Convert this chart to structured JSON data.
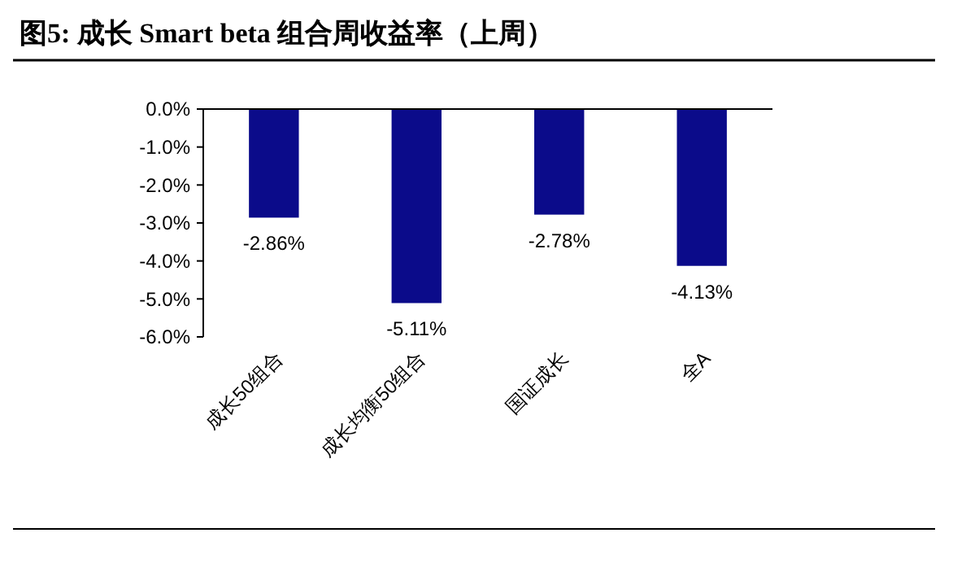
{
  "chart_data": {
    "type": "bar",
    "title": "图5:  成长 Smart beta 组合周收益率（上周）",
    "categories": [
      "成长50组合",
      "成长均衡50组合",
      "国证成长",
      "全A"
    ],
    "values": [
      -2.86,
      -5.11,
      -2.78,
      -4.13
    ],
    "value_labels": [
      "-2.86%",
      "-5.11%",
      "-2.78%",
      "-4.13%"
    ],
    "color": "#0b0b8a",
    "ylim": [
      -6,
      0
    ],
    "yticks": [
      {
        "value": 0,
        "label": "0.0%"
      },
      {
        "value": -1,
        "label": "-1.0%"
      },
      {
        "value": -2,
        "label": "-2.0%"
      },
      {
        "value": -3,
        "label": "-3.0%"
      },
      {
        "value": -4,
        "label": "-4.0%"
      },
      {
        "value": -5,
        "label": "-5.0%"
      },
      {
        "value": -6,
        "label": "-6.0%"
      }
    ],
    "grid": false
  }
}
